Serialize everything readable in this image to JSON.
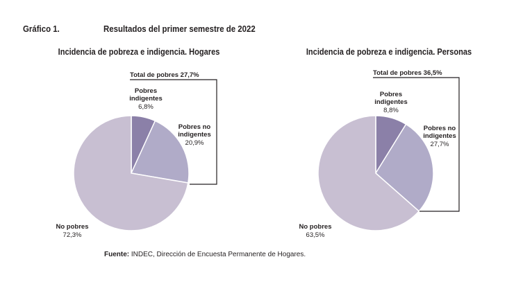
{
  "header": {
    "label": "Gráfico 1.",
    "title": "Resultados del primer semestre de 2022"
  },
  "source": {
    "label": "Fuente:",
    "text": " INDEC, Dirección de Encuesta Permanente de Hogares."
  },
  "colors": {
    "indigentes": "#8b80a8",
    "no_indigentes": "#b0abc8",
    "no_pobres": "#c8bfd2"
  },
  "chart_data": [
    {
      "type": "pie",
      "title": "Incidencia de pobreza e indigencia. Hogares",
      "bracket_label": "Total de pobres 27,7%",
      "slices": [
        {
          "name_1": "Pobres",
          "name_2": "indigentes",
          "value": 6.8,
          "label": "6,8%"
        },
        {
          "name_1": "Pobres no",
          "name_2": "indigentes",
          "value": 20.9,
          "label": "20,9%"
        },
        {
          "name_1": "No pobres",
          "name_2": "",
          "value": 72.3,
          "label": "72,3%"
        }
      ]
    },
    {
      "type": "pie",
      "title": "Incidencia de pobreza e indigencia. Personas",
      "bracket_label": "Total de pobres 36,5%",
      "slices": [
        {
          "name_1": "Pobres",
          "name_2": "indigentes",
          "value": 8.8,
          "label": "8,8%"
        },
        {
          "name_1": "Pobres no",
          "name_2": "indigentes",
          "value": 27.7,
          "label": "27,7%"
        },
        {
          "name_1": "No pobres",
          "name_2": "",
          "value": 63.5,
          "label": "63,5%"
        }
      ]
    }
  ]
}
